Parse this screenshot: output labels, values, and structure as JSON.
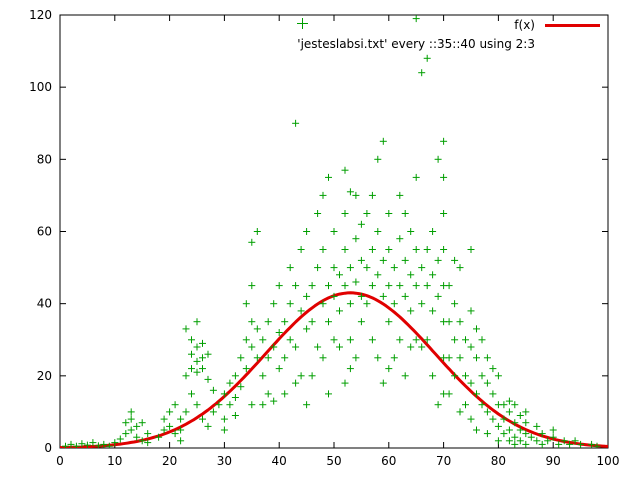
{
  "chart_data": {
    "type": "line+scatter",
    "title": "",
    "xlabel": "",
    "ylabel": "",
    "xlim": [
      0,
      100
    ],
    "ylim": [
      0,
      120
    ],
    "xticks": [
      0,
      10,
      20,
      30,
      40,
      50,
      60,
      70,
      80,
      90,
      100
    ],
    "yticks": [
      0,
      20,
      40,
      60,
      80,
      100,
      120
    ],
    "grid": false,
    "legend_position": "top-right",
    "border_color": "#000000",
    "series": [
      {
        "name": "f(x)",
        "type": "line",
        "color": "#e00000",
        "line_width": 3,
        "gaussian": {
          "amplitude": 43,
          "mean": 53,
          "sigma": 15.5
        }
      },
      {
        "name": "'jesteslabsi.txt' every ::35::40 using 2:3",
        "type": "scatter",
        "marker": "+",
        "color": "#009e00",
        "points": [
          [
            1,
            0.5
          ],
          [
            2,
            1
          ],
          [
            3,
            0.5
          ],
          [
            4,
            1.2
          ],
          [
            5,
            0.8
          ],
          [
            6,
            1.5
          ],
          [
            7,
            0.6
          ],
          [
            8,
            1
          ],
          [
            9,
            0.5
          ],
          [
            10,
            1.5
          ],
          [
            11,
            2.5
          ],
          [
            12,
            4
          ],
          [
            12,
            7
          ],
          [
            13,
            5
          ],
          [
            13,
            8
          ],
          [
            13,
            10
          ],
          [
            14,
            6
          ],
          [
            14,
            3
          ],
          [
            15,
            7
          ],
          [
            15,
            2
          ],
          [
            16,
            4
          ],
          [
            16,
            1.5
          ],
          [
            18,
            3
          ],
          [
            19,
            5
          ],
          [
            19,
            8
          ],
          [
            20,
            6
          ],
          [
            20,
            10
          ],
          [
            21,
            4
          ],
          [
            21,
            12
          ],
          [
            22,
            8
          ],
          [
            22,
            5
          ],
          [
            22,
            2
          ],
          [
            23,
            10
          ],
          [
            23,
            20
          ],
          [
            23,
            33
          ],
          [
            24,
            15
          ],
          [
            24,
            22
          ],
          [
            24,
            26
          ],
          [
            24,
            30
          ],
          [
            25,
            12
          ],
          [
            25,
            21
          ],
          [
            25,
            24
          ],
          [
            25,
            28
          ],
          [
            25,
            35
          ],
          [
            26,
            8
          ],
          [
            26,
            22
          ],
          [
            26,
            25
          ],
          [
            26,
            29
          ],
          [
            27,
            6
          ],
          [
            27,
            19
          ],
          [
            27,
            26
          ],
          [
            28,
            10
          ],
          [
            28,
            16
          ],
          [
            29,
            12
          ],
          [
            30,
            5
          ],
          [
            30,
            8
          ],
          [
            30,
            15
          ],
          [
            31,
            12
          ],
          [
            31,
            18
          ],
          [
            32,
            9
          ],
          [
            32,
            14
          ],
          [
            32,
            20
          ],
          [
            33,
            17
          ],
          [
            33,
            25
          ],
          [
            34,
            22
          ],
          [
            34,
            30
          ],
          [
            34,
            40
          ],
          [
            35,
            12
          ],
          [
            35,
            28
          ],
          [
            35,
            35
          ],
          [
            35,
            45
          ],
          [
            35,
            57
          ],
          [
            36,
            25
          ],
          [
            36,
            33
          ],
          [
            36,
            60
          ],
          [
            37,
            12
          ],
          [
            37,
            20
          ],
          [
            37,
            30
          ],
          [
            38,
            15
          ],
          [
            38,
            25
          ],
          [
            38,
            35
          ],
          [
            39,
            13
          ],
          [
            39,
            28
          ],
          [
            39,
            40
          ],
          [
            40,
            22
          ],
          [
            40,
            32
          ],
          [
            40,
            45
          ],
          [
            41,
            15
          ],
          [
            41,
            25
          ],
          [
            41,
            35
          ],
          [
            42,
            30
          ],
          [
            42,
            40
          ],
          [
            42,
            50
          ],
          [
            43,
            18
          ],
          [
            43,
            28
          ],
          [
            43,
            45
          ],
          [
            43,
            90
          ],
          [
            44,
            20
          ],
          [
            44,
            38
          ],
          [
            44,
            55
          ],
          [
            45,
            12
          ],
          [
            45,
            33
          ],
          [
            45,
            42
          ],
          [
            45,
            60
          ],
          [
            46,
            20
          ],
          [
            46,
            35
          ],
          [
            46,
            45
          ],
          [
            47,
            28
          ],
          [
            47,
            50
          ],
          [
            47,
            65
          ],
          [
            48,
            25
          ],
          [
            48,
            40
          ],
          [
            48,
            55
          ],
          [
            48,
            70
          ],
          [
            49,
            15
          ],
          [
            49,
            35
          ],
          [
            49,
            45
          ],
          [
            49,
            75
          ],
          [
            50,
            30
          ],
          [
            50,
            42
          ],
          [
            50,
            50
          ],
          [
            50,
            60
          ],
          [
            51,
            28
          ],
          [
            51,
            38
          ],
          [
            51,
            48
          ],
          [
            52,
            18
          ],
          [
            52,
            45
          ],
          [
            52,
            55
          ],
          [
            52,
            65
          ],
          [
            52,
            77
          ],
          [
            53,
            22
          ],
          [
            53,
            30
          ],
          [
            53,
            40
          ],
          [
            53,
            50
          ],
          [
            53,
            71
          ],
          [
            54,
            25
          ],
          [
            54,
            46
          ],
          [
            54,
            58
          ],
          [
            54,
            70
          ],
          [
            55,
            35
          ],
          [
            55,
            42
          ],
          [
            55,
            52
          ],
          [
            55,
            62
          ],
          [
            56,
            40
          ],
          [
            56,
            50
          ],
          [
            56,
            65
          ],
          [
            57,
            30
          ],
          [
            57,
            45
          ],
          [
            57,
            55
          ],
          [
            57,
            70
          ],
          [
            58,
            25
          ],
          [
            58,
            48
          ],
          [
            58,
            60
          ],
          [
            58,
            80
          ],
          [
            59,
            18
          ],
          [
            59,
            42
          ],
          [
            59,
            52
          ],
          [
            59,
            85
          ],
          [
            60,
            22
          ],
          [
            60,
            35
          ],
          [
            60,
            45
          ],
          [
            60,
            55
          ],
          [
            60,
            65
          ],
          [
            61,
            25
          ],
          [
            61,
            40
          ],
          [
            61,
            50
          ],
          [
            62,
            30
          ],
          [
            62,
            45
          ],
          [
            62,
            58
          ],
          [
            62,
            70
          ],
          [
            63,
            20
          ],
          [
            63,
            42
          ],
          [
            63,
            52
          ],
          [
            63,
            65
          ],
          [
            64,
            28
          ],
          [
            64,
            38
          ],
          [
            64,
            48
          ],
          [
            64,
            60
          ],
          [
            65,
            30
          ],
          [
            65,
            45
          ],
          [
            65,
            55
          ],
          [
            65,
            75
          ],
          [
            65,
            119
          ],
          [
            66,
            28
          ],
          [
            66,
            40
          ],
          [
            66,
            50
          ],
          [
            66,
            104
          ],
          [
            67,
            30
          ],
          [
            67,
            45
          ],
          [
            67,
            55
          ],
          [
            67,
            108
          ],
          [
            68,
            20
          ],
          [
            68,
            38
          ],
          [
            68,
            48
          ],
          [
            68,
            60
          ],
          [
            69,
            12
          ],
          [
            69,
            42
          ],
          [
            69,
            52
          ],
          [
            69,
            80
          ],
          [
            70,
            15
          ],
          [
            70,
            25
          ],
          [
            70,
            35
          ],
          [
            70,
            45
          ],
          [
            70,
            55
          ],
          [
            70,
            65
          ],
          [
            70,
            75
          ],
          [
            70,
            85
          ],
          [
            71,
            15
          ],
          [
            71,
            25
          ],
          [
            71,
            35
          ],
          [
            71,
            45
          ],
          [
            72,
            20
          ],
          [
            72,
            30
          ],
          [
            72,
            40
          ],
          [
            72,
            52
          ],
          [
            73,
            10
          ],
          [
            73,
            25
          ],
          [
            73,
            35
          ],
          [
            73,
            50
          ],
          [
            74,
            12
          ],
          [
            74,
            20
          ],
          [
            74,
            30
          ],
          [
            75,
            8
          ],
          [
            75,
            18
          ],
          [
            75,
            28
          ],
          [
            75,
            38
          ],
          [
            75,
            55
          ],
          [
            76,
            5
          ],
          [
            76,
            15
          ],
          [
            76,
            25
          ],
          [
            76,
            33
          ],
          [
            77,
            12
          ],
          [
            77,
            20
          ],
          [
            77,
            30
          ],
          [
            78,
            4
          ],
          [
            78,
            10
          ],
          [
            78,
            18
          ],
          [
            78,
            25
          ],
          [
            79,
            8
          ],
          [
            79,
            15
          ],
          [
            79,
            22
          ],
          [
            80,
            2
          ],
          [
            80,
            6
          ],
          [
            80,
            12
          ],
          [
            80,
            20
          ],
          [
            81,
            4
          ],
          [
            81,
            8
          ],
          [
            81,
            12
          ],
          [
            82,
            2
          ],
          [
            82,
            5
          ],
          [
            82,
            10
          ],
          [
            82,
            13
          ],
          [
            83,
            1
          ],
          [
            83,
            3
          ],
          [
            83,
            7
          ],
          [
            83,
            12
          ],
          [
            84,
            2
          ],
          [
            84,
            5
          ],
          [
            84,
            9
          ],
          [
            85,
            1
          ],
          [
            85,
            4
          ],
          [
            85,
            7
          ],
          [
            85,
            10
          ],
          [
            86,
            3
          ],
          [
            87,
            2
          ],
          [
            87,
            6
          ],
          [
            88,
            1
          ],
          [
            88,
            4
          ],
          [
            89,
            2
          ],
          [
            90,
            3
          ],
          [
            90,
            5
          ],
          [
            91,
            1
          ],
          [
            92,
            2
          ],
          [
            93,
            1
          ],
          [
            94,
            2
          ],
          [
            95,
            1
          ],
          [
            97,
            1
          ],
          [
            98,
            0.5
          ]
        ]
      }
    ]
  }
}
